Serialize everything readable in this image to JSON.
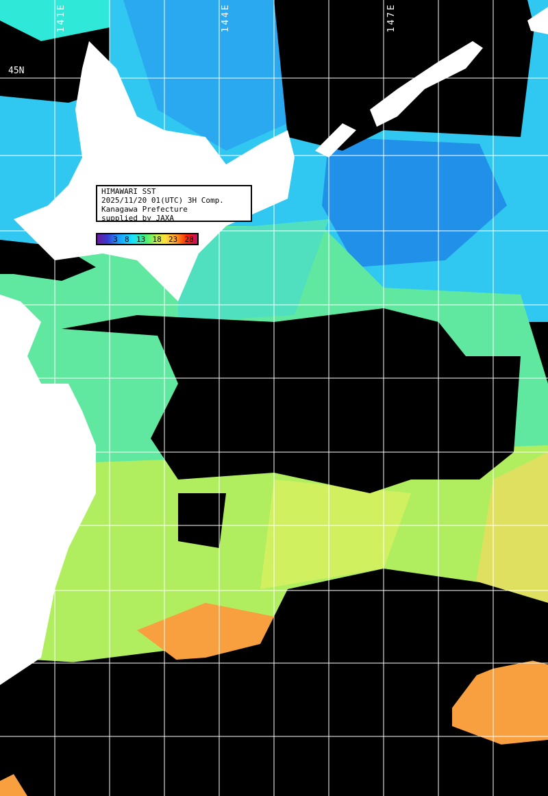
{
  "info_box": {
    "title": "HIMAWARI SST",
    "datetime": "2025/11/20 01(UTC) 3H Comp.",
    "producer": "Kanagawa Prefecture",
    "credit": "supplied by JAXA"
  },
  "color_scale": {
    "ticks": [
      "3",
      "8",
      "13",
      "18",
      "23",
      "28"
    ],
    "colors": [
      "#6a1a9a",
      "#1aa0ff",
      "#19e0ff",
      "#40f080",
      "#ffe040",
      "#ff9020",
      "#ff2000",
      "#c0106a"
    ]
  },
  "grid_labels": {
    "lat": "45N",
    "lon_1": "141E",
    "lon_2": "144E",
    "lon_3": "147E"
  },
  "colors": {
    "cloud": "#000000",
    "land": "#ffffff",
    "grid": "#ffffff"
  }
}
